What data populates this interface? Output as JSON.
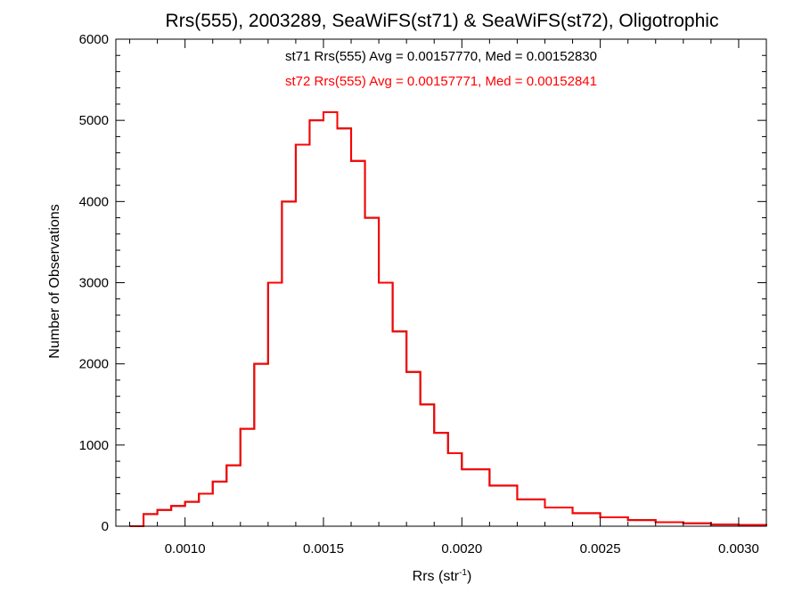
{
  "chart_data": {
    "type": "histogram",
    "title": "Rrs(555), 2003289, SeaWiFS(st71) & SeaWiFS(st72), Oligotrophic",
    "xlabel_main": "Rrs (str",
    "xlabel_sup": "-1",
    "xlabel_close": ")",
    "ylabel": "Number of Observations",
    "xlim": [
      0.00075,
      0.0031
    ],
    "ylim": [
      0,
      6000
    ],
    "x_ticks": [
      0.001,
      0.0015,
      0.002,
      0.0025,
      0.003
    ],
    "x_tick_labels": [
      "0.0010",
      "0.0015",
      "0.0020",
      "0.0025",
      "0.0030"
    ],
    "y_ticks": [
      0,
      1000,
      2000,
      3000,
      4000,
      5000,
      6000
    ],
    "y_tick_labels": [
      "0",
      "1000",
      "2000",
      "3000",
      "4000",
      "5000",
      "6000"
    ],
    "annotations": [
      {
        "text": "st71 Rrs(555) Avg = 0.00157770, Med = 0.00152830",
        "color": "#000000"
      },
      {
        "text": "st72 Rrs(555) Avg = 0.00157771, Med = 0.00152841",
        "color": "#ff0000"
      }
    ],
    "series": [
      {
        "color": "#000000",
        "x": [
          0.0008,
          0.00085,
          0.0009,
          0.00095,
          0.001,
          0.00105,
          0.0011,
          0.00115,
          0.0012,
          0.00125,
          0.0013,
          0.00135,
          0.0014,
          0.00145,
          0.0015,
          0.00155,
          0.0016,
          0.00165,
          0.0017,
          0.00175,
          0.0018,
          0.00185,
          0.0019,
          0.00195,
          0.002,
          0.0021,
          0.0022,
          0.0023,
          0.0024,
          0.0025,
          0.0026,
          0.0027,
          0.0028,
          0.0029,
          0.003,
          0.0031
        ],
        "values": [
          0,
          150,
          200,
          250,
          300,
          400,
          550,
          750,
          1200,
          2000,
          3000,
          4000,
          4700,
          5000,
          5100,
          4900,
          4500,
          3800,
          3000,
          2400,
          1900,
          1500,
          1150,
          900,
          700,
          500,
          330,
          230,
          160,
          110,
          75,
          50,
          35,
          20,
          15,
          0
        ]
      },
      {
        "color": "#ff0000",
        "x": [
          0.0008,
          0.00085,
          0.0009,
          0.00095,
          0.001,
          0.00105,
          0.0011,
          0.00115,
          0.0012,
          0.00125,
          0.0013,
          0.00135,
          0.0014,
          0.00145,
          0.0015,
          0.00155,
          0.0016,
          0.00165,
          0.0017,
          0.00175,
          0.0018,
          0.00185,
          0.0019,
          0.00195,
          0.002,
          0.0021,
          0.0022,
          0.0023,
          0.0024,
          0.0025,
          0.0026,
          0.0027,
          0.0028,
          0.0029,
          0.003,
          0.0031
        ],
        "values": [
          0,
          150,
          200,
          250,
          300,
          400,
          550,
          750,
          1200,
          2000,
          3000,
          4000,
          4700,
          5000,
          5100,
          4900,
          4500,
          3800,
          3000,
          2400,
          1900,
          1500,
          1150,
          900,
          700,
          500,
          330,
          230,
          160,
          110,
          75,
          50,
          35,
          20,
          15,
          0
        ]
      }
    ]
  }
}
